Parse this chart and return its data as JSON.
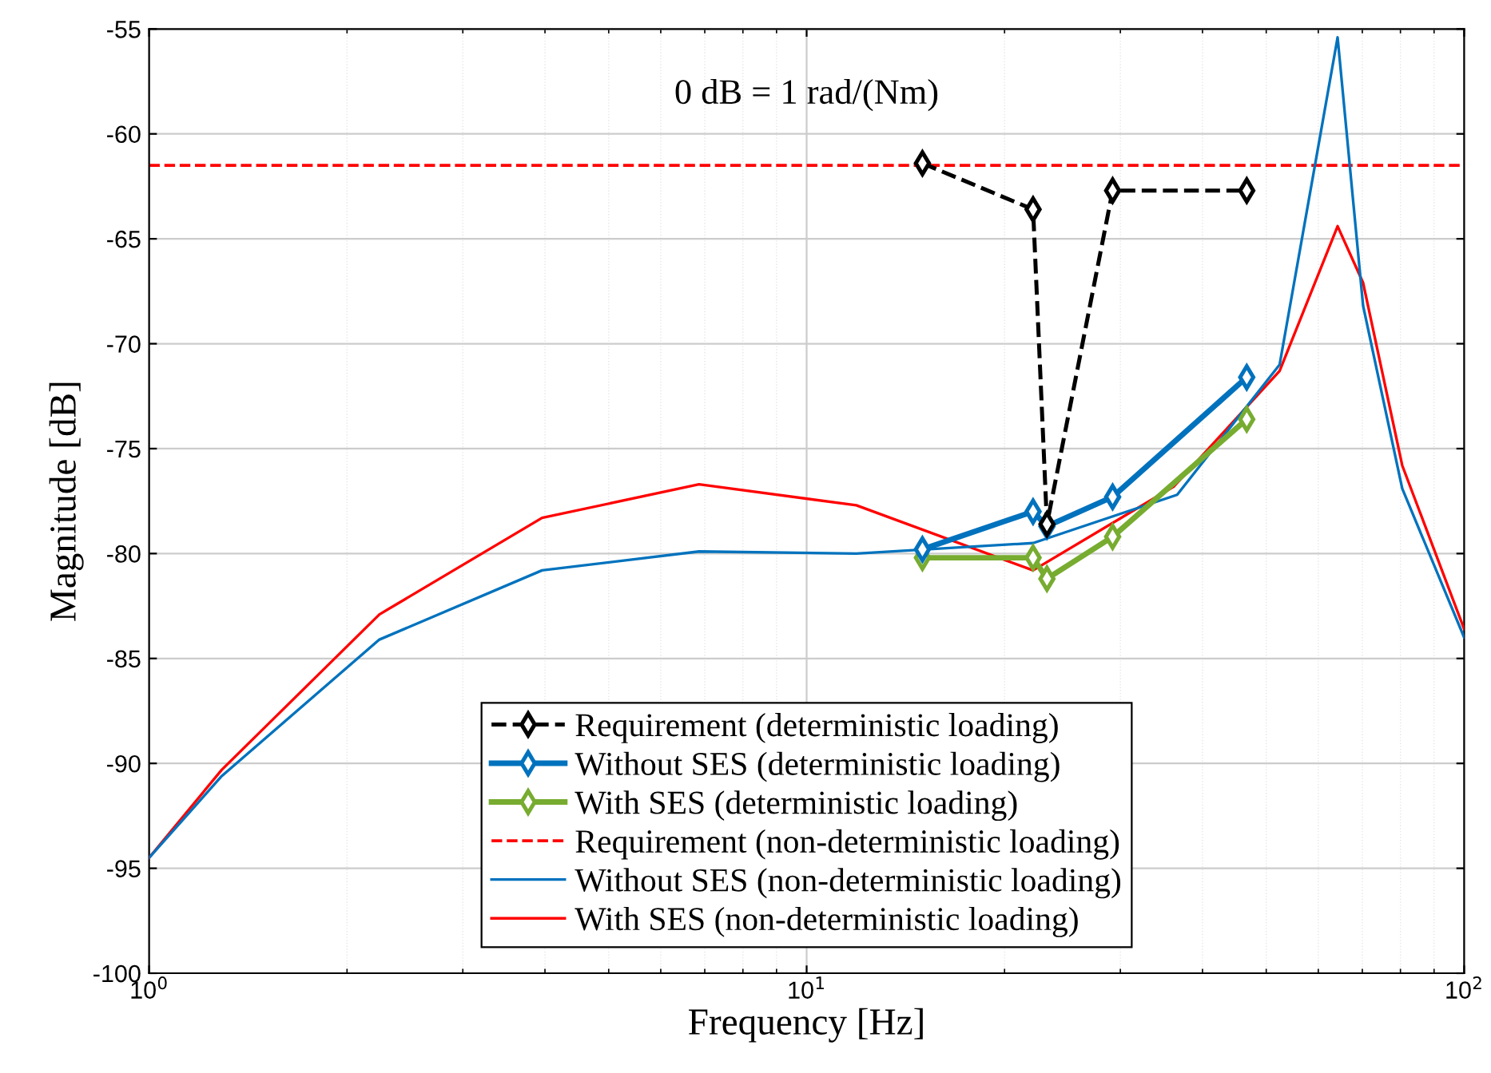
{
  "chart_data": {
    "type": "line",
    "xlabel": "Frequency [Hz]",
    "ylabel": "Magnitude [dB]",
    "annotations": [
      "0 dB = 1 rad/(Nm)"
    ],
    "log": "x",
    "xlim": [
      1,
      100
    ],
    "xticks": [
      {
        "value": 1,
        "label": "10$^{0}$"
      },
      {
        "value": 10,
        "label": "10$^{1}$"
      },
      {
        "value": 100,
        "label": "10$^{2}$"
      }
    ],
    "ylim": [
      -100,
      -55
    ],
    "yticks": [
      -100,
      -95,
      -90,
      -85,
      -80,
      -75,
      -70,
      -65,
      -60,
      -55
    ],
    "grid": true,
    "legend": "bottom",
    "series": [
      {
        "name": "Requirement (deterministic loading)",
        "color": "#000000",
        "marker": "diamond",
        "line_style": "dashed",
        "x": [
          15.0,
          22.1,
          23.2,
          29.2,
          46.7
        ],
        "values": [
          -61.4,
          -63.6,
          -78.6,
          -62.7,
          -62.7
        ]
      },
      {
        "name": "Without SES (deterministic loading)",
        "color": "#0072bd",
        "marker": "diamond",
        "line_style": "solid",
        "x": [
          15.0,
          22.1,
          23.2,
          29.2,
          46.7
        ],
        "values": [
          -79.8,
          -78.0,
          -78.7,
          -77.3,
          -71.6
        ]
      },
      {
        "name": "With SES (deterministic loading)",
        "color": "#77ac30",
        "marker": "diamond",
        "line_style": "solid",
        "x": [
          15.0,
          22.1,
          23.2,
          29.2,
          46.7
        ],
        "values": [
          -80.2,
          -80.2,
          -81.2,
          -79.2,
          -73.6
        ]
      },
      {
        "name": "Without SES (non-deterministic loading)",
        "color": "#0072bd",
        "marker": "none",
        "line_style": "solid",
        "x": [
          1,
          1.29,
          2.24,
          3.96,
          6.86,
          11.9,
          22.1,
          36.6,
          52.4,
          64.2,
          70.2,
          80.5,
          100
        ],
        "values": [
          -94.5,
          -90.6,
          -84.1,
          -80.8,
          -79.9,
          -80.0,
          -79.5,
          -77.2,
          -71.0,
          -55.4,
          -68.2,
          -76.9,
          -84.0
        ]
      },
      {
        "name": "With SES (non-deterministic loading)",
        "color": "#ff0000",
        "marker": "none",
        "line_style": "solid",
        "x": [
          1,
          1.29,
          2.24,
          3.96,
          6.86,
          11.9,
          22.1,
          36.2,
          52.4,
          64.2,
          70.2,
          80.5,
          100
        ],
        "values": [
          -94.5,
          -90.3,
          -82.9,
          -78.3,
          -76.7,
          -77.7,
          -80.8,
          -76.8,
          -71.3,
          -64.4,
          -67.1,
          -75.8,
          -83.6
        ]
      }
    ],
    "ref_lines": [
      {
        "axis": "y",
        "value": -61.5,
        "label": "Requirement (non-deterministic loading)",
        "color": "#ff0000",
        "line_style": "dashed"
      }
    ]
  }
}
